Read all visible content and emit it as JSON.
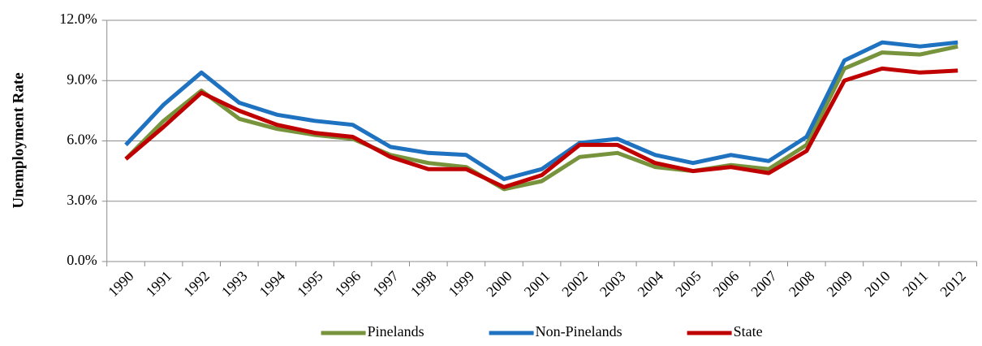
{
  "chart_data": {
    "type": "line",
    "y_label": "Unemployment Rate",
    "categories": [
      "1990",
      "1991",
      "1992",
      "1993",
      "1994",
      "1995",
      "1996",
      "1997",
      "1998",
      "1999",
      "2000",
      "2001",
      "2002",
      "2003",
      "2004",
      "2005",
      "2006",
      "2007",
      "2008",
      "2009",
      "2010",
      "2011",
      "2012"
    ],
    "series": [
      {
        "name": "Pinelands",
        "color": "#77933c",
        "values": [
          5.1,
          7.0,
          8.5,
          7.1,
          6.6,
          6.3,
          6.1,
          5.3,
          4.9,
          4.7,
          3.6,
          4.0,
          5.2,
          5.4,
          4.7,
          4.5,
          4.8,
          4.6,
          5.8,
          9.6,
          10.4,
          10.3,
          10.7
        ]
      },
      {
        "name": "Non-Pinelands",
        "color": "#1f72c0",
        "values": [
          5.8,
          7.8,
          9.4,
          7.9,
          7.3,
          7.0,
          6.8,
          5.7,
          5.4,
          5.3,
          4.1,
          4.6,
          5.9,
          6.1,
          5.3,
          4.9,
          5.3,
          5.0,
          6.2,
          10.0,
          10.9,
          10.7,
          10.9
        ]
      },
      {
        "name": "State",
        "color": "#c00000",
        "values": [
          5.1,
          6.7,
          8.4,
          7.5,
          6.8,
          6.4,
          6.2,
          5.2,
          4.6,
          4.6,
          3.7,
          4.3,
          5.8,
          5.8,
          4.9,
          4.5,
          4.7,
          4.4,
          5.5,
          9.0,
          9.6,
          9.4,
          9.5
        ]
      }
    ],
    "ylim": [
      0,
      12
    ],
    "yticks": [
      {
        "value": 0,
        "label": "0.0%"
      },
      {
        "value": 3,
        "label": "3.0%"
      },
      {
        "value": 6,
        "label": "6.0%"
      },
      {
        "value": 9,
        "label": "9.0%"
      },
      {
        "value": 12,
        "label": "12.0%"
      }
    ],
    "grid": true,
    "legend": "bottom"
  }
}
